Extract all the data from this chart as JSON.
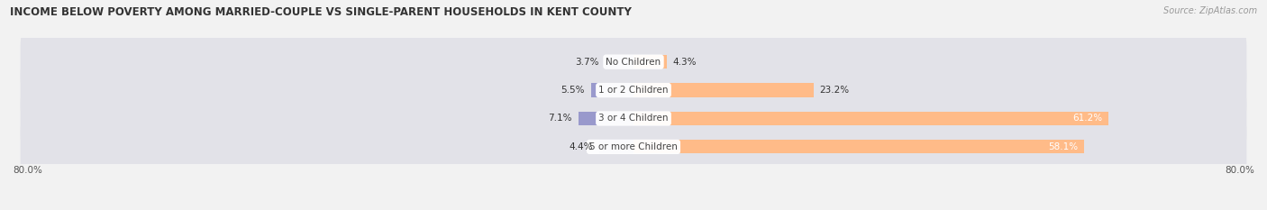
{
  "title": "INCOME BELOW POVERTY AMONG MARRIED-COUPLE VS SINGLE-PARENT HOUSEHOLDS IN KENT COUNTY",
  "source": "Source: ZipAtlas.com",
  "categories": [
    "No Children",
    "1 or 2 Children",
    "3 or 4 Children",
    "5 or more Children"
  ],
  "married_values": [
    3.7,
    5.5,
    7.1,
    4.4
  ],
  "single_values": [
    4.3,
    23.2,
    61.2,
    58.1
  ],
  "married_color": "#9999cc",
  "single_color": "#ffbb88",
  "axis_min": -80.0,
  "axis_max": 80.0,
  "background_color": "#f2f2f2",
  "row_bg_color": "#e2e2e8",
  "title_fontsize": 8.5,
  "source_fontsize": 7,
  "label_fontsize": 7.5,
  "category_fontsize": 7.5,
  "legend_fontsize": 8,
  "left_axis_label": "80.0%",
  "right_axis_label": "80.0%"
}
